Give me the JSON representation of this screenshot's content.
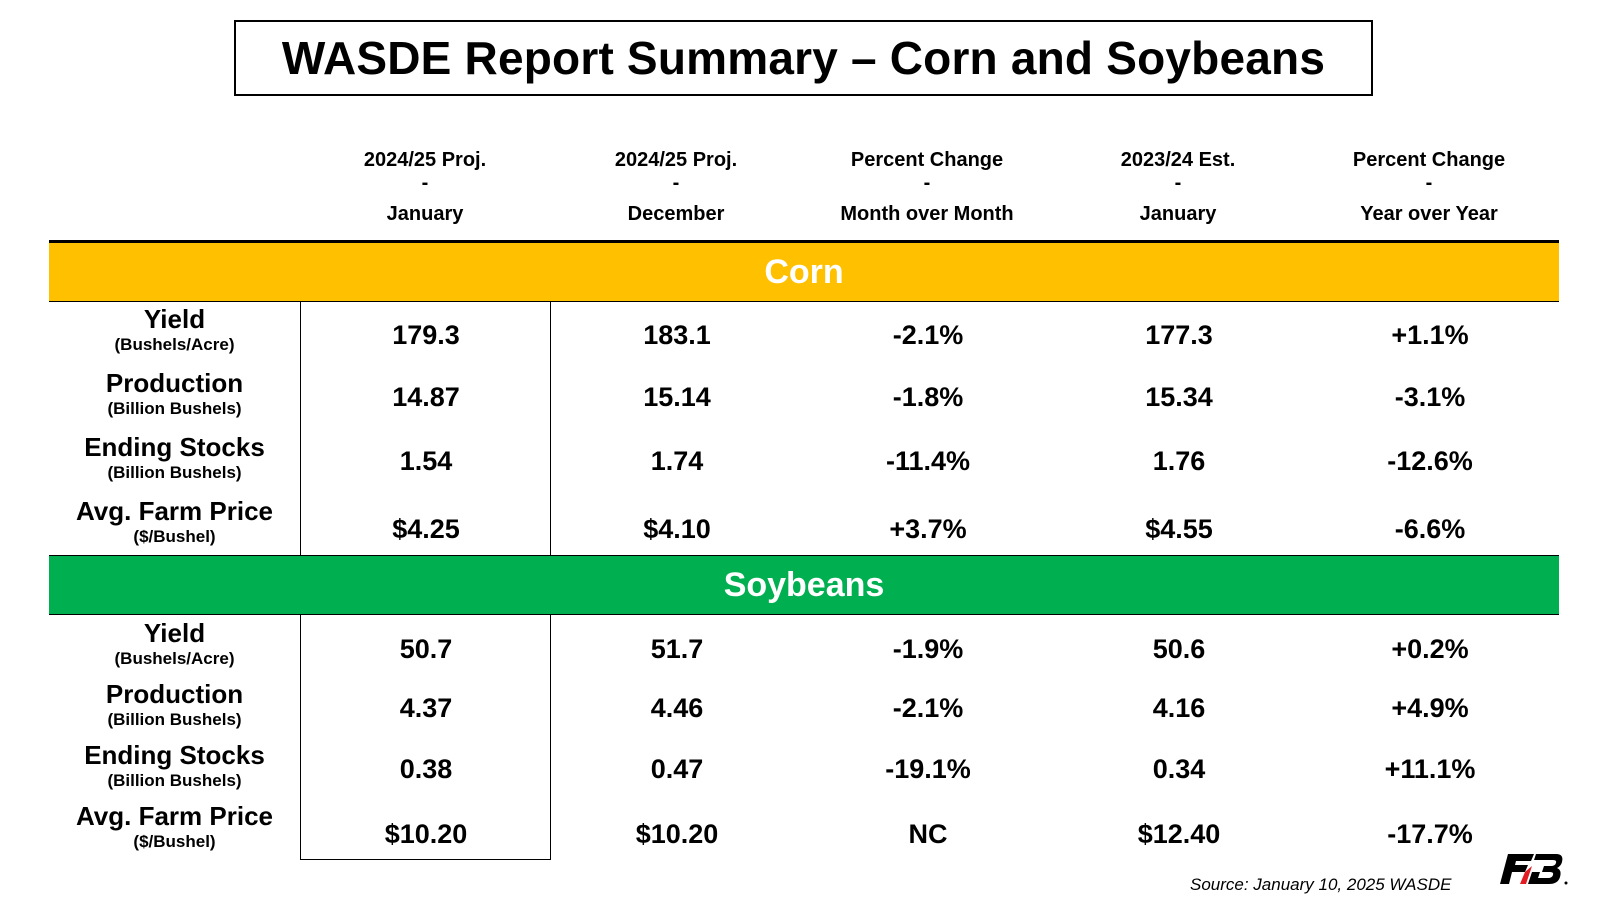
{
  "title": "WASDE Report Summary – Corn and Soybeans",
  "columns": [
    {
      "line1": "2024/25 Proj.",
      "line2": "-",
      "line3": "January"
    },
    {
      "line1": "2024/25 Proj.",
      "line2": "-",
      "line3": "December"
    },
    {
      "line1": "Percent Change",
      "line2": "-",
      "line3": "Month over Month"
    },
    {
      "line1": "2023/24 Est.",
      "line2": "-",
      "line3": "January"
    },
    {
      "line1": "Percent Change",
      "line2": "-",
      "line3": "Year over Year"
    }
  ],
  "sections": [
    {
      "name": "Corn",
      "color": "#ffc000",
      "rows": [
        {
          "label": "Yield",
          "unit": "(Bushels/Acre)",
          "values": [
            "179.3",
            "183.1",
            "-2.1%",
            "177.3",
            "+1.1%"
          ]
        },
        {
          "label": "Production",
          "unit": "(Billion Bushels)",
          "values": [
            "14.87",
            "15.14",
            "-1.8%",
            "15.34",
            "-3.1%"
          ]
        },
        {
          "label": "Ending Stocks",
          "unit": "(Billion Bushels)",
          "values": [
            "1.54",
            "1.74",
            "-11.4%",
            "1.76",
            "-12.6%"
          ]
        },
        {
          "label": "Avg. Farm Price",
          "unit": "($/Bushel)",
          "values": [
            "$4.25",
            "$4.10",
            "+3.7%",
            "$4.55",
            "-6.6%"
          ]
        }
      ]
    },
    {
      "name": "Soybeans",
      "color": "#00b050",
      "rows": [
        {
          "label": "Yield",
          "unit": "(Bushels/Acre)",
          "values": [
            "50.7",
            "51.7",
            "-1.9%",
            "50.6",
            "+0.2%"
          ]
        },
        {
          "label": "Production",
          "unit": "(Billion Bushels)",
          "values": [
            "4.37",
            "4.46",
            "-2.1%",
            "4.16",
            "+4.9%"
          ]
        },
        {
          "label": "Ending Stocks",
          "unit": "(Billion Bushels)",
          "values": [
            "0.38",
            "0.47",
            "-19.1%",
            "0.34",
            "+11.1%"
          ]
        },
        {
          "label": "Avg. Farm Price",
          "unit": "($/Bushel)",
          "values": [
            "$10.20",
            "$10.20",
            "NC",
            "$12.40",
            "-17.7%"
          ]
        }
      ]
    }
  ],
  "source": "Source: January 10, 2025 WASDE",
  "logo": {
    "icon": "farm-bureau-logo-icon",
    "text": "FB",
    "color": "#000000",
    "accent": "#e31b23"
  }
}
